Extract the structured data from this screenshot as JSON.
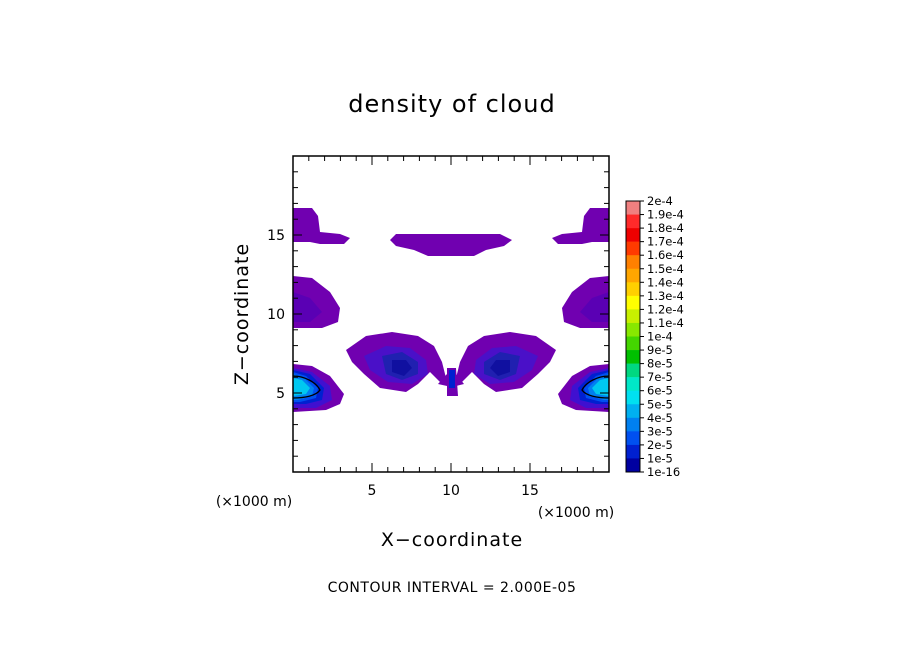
{
  "chart_data": {
    "type": "contour",
    "title": "density of cloud",
    "xlabel": "X−coordinate",
    "ylabel": "Z−coordinate",
    "x_unit_label": "(×1000 m)",
    "y_unit_label": "(×1000 m)",
    "xlim": [
      0,
      20
    ],
    "ylim": [
      0,
      20
    ],
    "xticks": [
      5,
      10,
      15
    ],
    "yticks": [
      5,
      10,
      15
    ],
    "footer": "CONTOUR INTERVAL = 2.000E-05",
    "colorbar": {
      "labels": [
        "2e-4",
        "1.9e-4",
        "1.8e-4",
        "1.7e-4",
        "1.6e-4",
        "1.5e-4",
        "1.4e-4",
        "1.3e-4",
        "1.2e-4",
        "1.1e-4",
        "1e-4",
        "9e-5",
        "8e-5",
        "7e-5",
        "6e-5",
        "5e-5",
        "4e-5",
        "3e-5",
        "2e-5",
        "1e-5",
        "1e-16"
      ],
      "colors": [
        "#f08080",
        "#ff2a2a",
        "#ee0000",
        "#ff3a00",
        "#ff8000",
        "#ffa600",
        "#ffd000",
        "#ffff00",
        "#c8f000",
        "#88e800",
        "#44d600",
        "#00c000",
        "#00d880",
        "#00e8c8",
        "#00e0f0",
        "#00b0f0",
        "#0080f0",
        "#0050f0",
        "#0020d0",
        "#0000a0",
        "#7000b0"
      ]
    },
    "regions": [
      {
        "name": "top-left-cloud",
        "level": "1e-16",
        "x_range": [
          0,
          3.5
        ],
        "z_range": [
          14.5,
          16.5
        ]
      },
      {
        "name": "top-center-cloud",
        "level": "1e-16",
        "x_range": [
          6,
          13.5
        ],
        "z_range": [
          14,
          15
        ]
      },
      {
        "name": "top-right-cloud",
        "level": "1e-16",
        "x_range": [
          16.5,
          20
        ],
        "z_range": [
          14.5,
          16.5
        ]
      },
      {
        "name": "mid-left-cloud",
        "level": "1e-16",
        "x_range": [
          0,
          3
        ],
        "z_range": [
          9,
          12.5
        ]
      },
      {
        "name": "mid-right-cloud",
        "level": "1e-16",
        "x_range": [
          17,
          20
        ],
        "z_range": [
          9,
          12.5
        ]
      },
      {
        "name": "center-left-cloud",
        "max_level": "1e-5",
        "x_range": [
          3,
          9.5
        ],
        "z_range": [
          5,
          8.5
        ]
      },
      {
        "name": "center-right-cloud",
        "max_level": "1e-5",
        "x_range": [
          10.5,
          17
        ],
        "z_range": [
          5,
          8.5
        ]
      },
      {
        "name": "center-column",
        "max_level": "2e-5",
        "x_range": [
          9.8,
          10.2
        ],
        "z_range": [
          5,
          6.5
        ]
      },
      {
        "name": "low-left-core",
        "max_level": "6e-5",
        "x_range": [
          0,
          3.2
        ],
        "z_range": [
          4,
          6.5
        ]
      },
      {
        "name": "low-right-core",
        "max_level": "6e-5",
        "x_range": [
          16.8,
          20
        ],
        "z_range": [
          4,
          6.5
        ]
      }
    ]
  }
}
